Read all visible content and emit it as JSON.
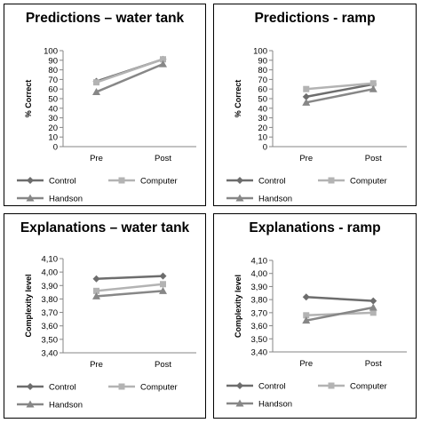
{
  "chart_data": [
    {
      "type": "line",
      "title": "Predictions – water tank",
      "ylabel": "% Correct",
      "categories": [
        "Pre",
        "Post"
      ],
      "ylim": [
        0,
        100
      ],
      "yticks": [
        "0",
        "10",
        "20",
        "30",
        "40",
        "50",
        "60",
        "70",
        "80",
        "90",
        "100"
      ],
      "ytick_values": [
        0,
        10,
        20,
        30,
        40,
        50,
        60,
        70,
        80,
        90,
        100
      ],
      "series": [
        {
          "name": "Control",
          "values": [
            68,
            91
          ],
          "color": "#6d6d6d",
          "marker": "diamond"
        },
        {
          "name": "Computer",
          "values": [
            67,
            91
          ],
          "color": "#b3b3b3",
          "marker": "square"
        },
        {
          "name": "Handson",
          "values": [
            57,
            86
          ],
          "color": "#878787",
          "marker": "triangle"
        }
      ]
    },
    {
      "type": "line",
      "title": "Predictions - ramp",
      "ylabel": "% Correct",
      "categories": [
        "Pre",
        "Post"
      ],
      "ylim": [
        0,
        100
      ],
      "yticks": [
        "0",
        "10",
        "20",
        "30",
        "40",
        "50",
        "60",
        "70",
        "80",
        "90",
        "100"
      ],
      "ytick_values": [
        0,
        10,
        20,
        30,
        40,
        50,
        60,
        70,
        80,
        90,
        100
      ],
      "series": [
        {
          "name": "Control",
          "values": [
            52,
            65
          ],
          "color": "#6d6d6d",
          "marker": "diamond"
        },
        {
          "name": "Computer",
          "values": [
            60,
            66
          ],
          "color": "#b3b3b3",
          "marker": "square"
        },
        {
          "name": "Handson",
          "values": [
            46,
            60
          ],
          "color": "#878787",
          "marker": "triangle"
        }
      ]
    },
    {
      "type": "line",
      "title": "Explanations – water tank",
      "ylabel": "Complexity level",
      "categories": [
        "Pre",
        "Post"
      ],
      "ylim": [
        3.4,
        4.1
      ],
      "yticks": [
        "3,40",
        "3,50",
        "3,60",
        "3,70",
        "3,80",
        "3,90",
        "4,00",
        "4,10"
      ],
      "ytick_values": [
        3.4,
        3.5,
        3.6,
        3.7,
        3.8,
        3.9,
        4.0,
        4.1
      ],
      "series": [
        {
          "name": "Control",
          "values": [
            3.95,
            3.97
          ],
          "color": "#6d6d6d",
          "marker": "diamond"
        },
        {
          "name": "Computer",
          "values": [
            3.86,
            3.91
          ],
          "color": "#b3b3b3",
          "marker": "square"
        },
        {
          "name": "Handson",
          "values": [
            3.82,
            3.86
          ],
          "color": "#878787",
          "marker": "triangle"
        }
      ]
    },
    {
      "type": "line",
      "title": "Explanations - ramp",
      "ylabel": "Complexity level",
      "categories": [
        "Pre",
        "Post"
      ],
      "ylim": [
        3.4,
        4.1
      ],
      "yticks": [
        "3,40",
        "3,50",
        "3,60",
        "3,70",
        "3,80",
        "3,90",
        "4,00",
        "4,10"
      ],
      "ytick_values": [
        3.4,
        3.5,
        3.6,
        3.7,
        3.8,
        3.9,
        4.0,
        4.1
      ],
      "series": [
        {
          "name": "Control",
          "values": [
            3.82,
            3.79
          ],
          "color": "#6d6d6d",
          "marker": "diamond"
        },
        {
          "name": "Computer",
          "values": [
            3.68,
            3.7
          ],
          "color": "#b3b3b3",
          "marker": "square"
        },
        {
          "name": "Handson",
          "values": [
            3.64,
            3.74
          ],
          "color": "#878787",
          "marker": "triangle"
        }
      ]
    }
  ]
}
